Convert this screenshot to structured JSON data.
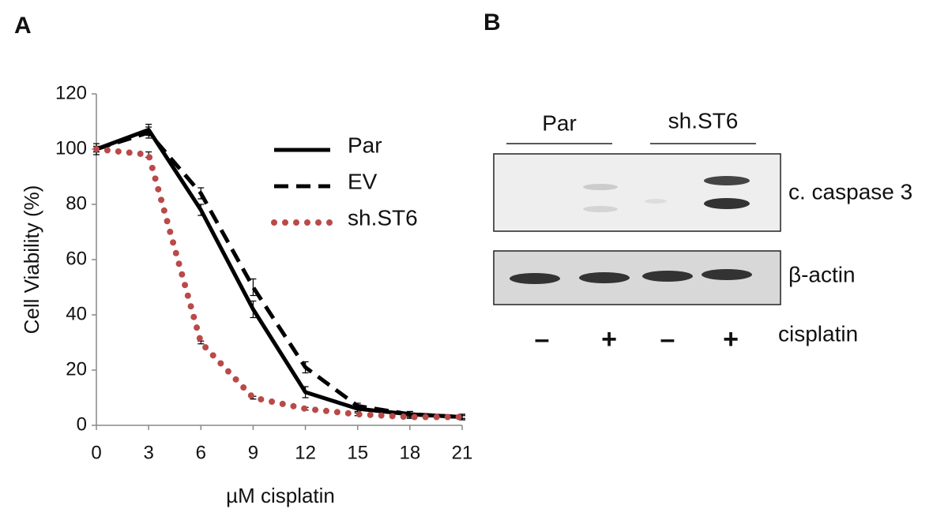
{
  "panel_labels": {
    "a": "A",
    "b": "B"
  },
  "chart_data": {
    "type": "line",
    "x_label": "µM cisplatin",
    "y_label": "Cell Viability (%)",
    "x": [
      0,
      3,
      6,
      9,
      12,
      15,
      18,
      21
    ],
    "series": [
      {
        "name": "Par",
        "color": "#000000",
        "dash": "solid",
        "values": [
          100,
          107,
          78,
          42,
          12,
          6,
          4,
          3
        ],
        "errors": [
          2,
          2,
          2,
          3,
          2,
          1,
          1,
          1
        ]
      },
      {
        "name": "EV",
        "color": "#000000",
        "dash": "dashed",
        "values": [
          100,
          106,
          84,
          50,
          21,
          7,
          4,
          3
        ],
        "errors": [
          1,
          2,
          2,
          3,
          2,
          1,
          1,
          1
        ]
      },
      {
        "name": "sh.ST6",
        "color": "#b94a48",
        "dash": "dotted",
        "values": [
          100,
          98,
          30,
          10,
          6,
          4,
          3,
          3
        ],
        "errors": [
          1,
          1,
          0.5,
          0.5,
          0.5,
          0.5,
          0.5,
          0.5
        ]
      }
    ],
    "xlim": [
      0,
      21
    ],
    "ylim": [
      0,
      120
    ],
    "xticks": [
      0,
      3,
      6,
      9,
      12,
      15,
      18,
      21
    ],
    "yticks": [
      0,
      20,
      40,
      60,
      80,
      100,
      120
    ],
    "grid": false,
    "legend": "upper right"
  },
  "blot": {
    "groups": [
      "Par",
      "sh.ST6"
    ],
    "bands": [
      "c. caspase 3",
      "β-actin"
    ],
    "treatment": {
      "label": "cisplatin",
      "signs": [
        "–",
        "+",
        "–",
        "+"
      ]
    }
  }
}
